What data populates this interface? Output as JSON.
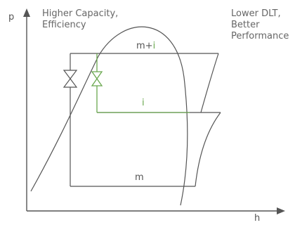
{
  "labels": {
    "top_left_line1": "Higher Capacity,",
    "top_left_line2": "Efficiency",
    "top_right_line1": "Lower DLT,",
    "top_right_line2": "Better",
    "top_right_line3": "Performance"
  },
  "axes": {
    "y_label": "p",
    "x_label": "h"
  },
  "flow_labels": {
    "m_plus": "m+",
    "i_part": "i",
    "injection": "i",
    "main": "m"
  },
  "colors": {
    "cycle_line": "#555555",
    "injection_line": "#6aa84f",
    "axis": "#555555",
    "text": "#666666"
  }
}
